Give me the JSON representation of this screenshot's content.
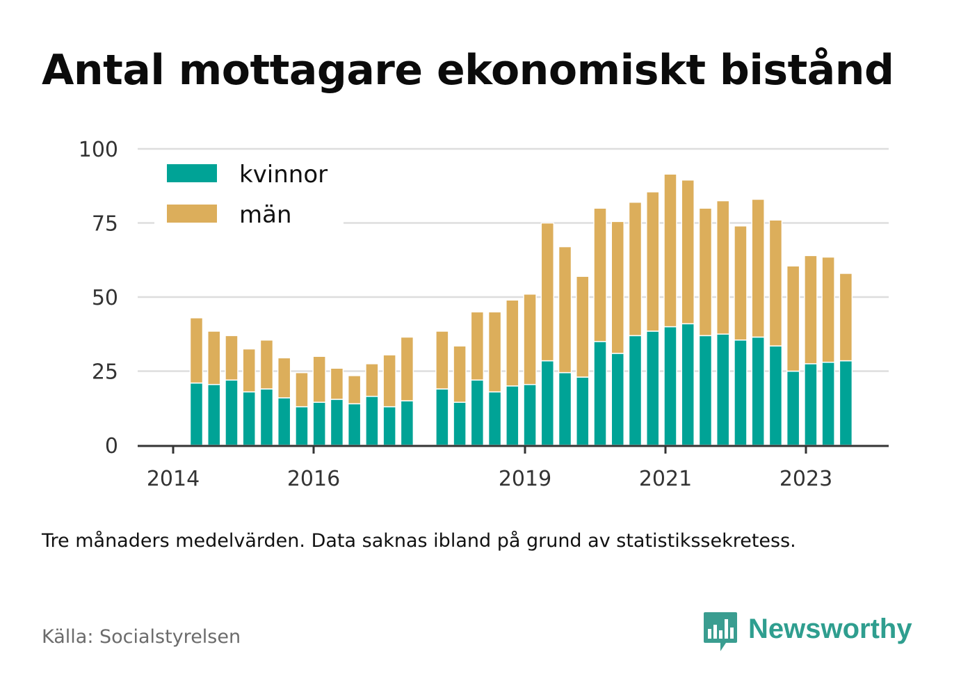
{
  "title": "Antal mottagare ekonomiskt bistånd",
  "note": "Tre månaders medelvärden. Data saknas ibland på grund av statistikssekretess.",
  "source": "Källa: Socialstyrelsen",
  "brand": {
    "name": "Newsworthy",
    "icon": "newsworthy-logo-icon",
    "color": "#2f9e8f"
  },
  "colors": {
    "kvinnor": "#00a396",
    "man": "#dcae5b",
    "grid": "#dddddd",
    "axis": "#333333"
  },
  "chart_data": {
    "type": "bar",
    "stacked": true,
    "title": "Antal mottagare ekonomiskt bistånd",
    "xlabel": "",
    "ylabel": "",
    "ylim": [
      0,
      100
    ],
    "yticks": [
      0,
      25,
      50,
      75,
      100
    ],
    "xticks": [
      "2014",
      "2016",
      "2019",
      "2021",
      "2023"
    ],
    "grid": "horizontal",
    "legend": "top-left",
    "series": [
      {
        "name": "kvinnor",
        "values": [
          21,
          20.5,
          22,
          18,
          19,
          16,
          13,
          14.5,
          15.5,
          14,
          16.5,
          13,
          15,
          null,
          19,
          14.5,
          22,
          18,
          20,
          20.5,
          28.5,
          24.5,
          23,
          35,
          31,
          37,
          38.5,
          40,
          41,
          37,
          37.5,
          35.5,
          36.5,
          33.5,
          25,
          27.5,
          28,
          28.5
        ]
      },
      {
        "name": "män",
        "values": [
          22,
          18,
          15,
          14.5,
          16.5,
          13.5,
          11.5,
          15.5,
          10.5,
          9.5,
          11,
          17.5,
          21.5,
          null,
          19.5,
          19,
          23,
          27,
          29,
          30.5,
          46.5,
          42.5,
          34,
          45,
          44.5,
          45,
          47,
          51.5,
          48.5,
          43,
          45,
          38.5,
          46.5,
          42.5,
          35.5,
          36.5,
          35.5,
          29.5
        ]
      }
    ]
  }
}
